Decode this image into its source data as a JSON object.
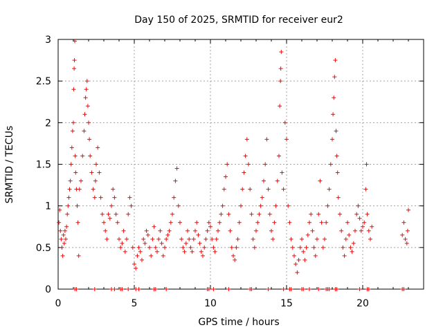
{
  "chart_data": {
    "type": "scatter",
    "title": "Day 150 of 2025, SRMTID for receiver eur2",
    "xlabel": "GPS time / hours",
    "ylabel": "SRMTID / TECUs",
    "xlim": [
      0,
      24
    ],
    "ylim": [
      0,
      3
    ],
    "grid": true,
    "x_ticks": [
      "0",
      "5",
      "10",
      "15",
      "20"
    ],
    "y_ticks": [
      "0",
      "0.5",
      "1",
      "1.5",
      "2",
      "2.5",
      "3"
    ],
    "marker": "plus",
    "color": "#ff0000",
    "series": [
      {
        "name": "SRMTID",
        "points": [
          [
            0.05,
            0.8
          ],
          [
            0.1,
            0.95
          ],
          [
            0.15,
            0.7
          ],
          [
            0.2,
            0.6
          ],
          [
            0.25,
            0.5
          ],
          [
            0.3,
            0.4
          ],
          [
            0.35,
            0.65
          ],
          [
            0.4,
            0.55
          ],
          [
            0.45,
            0.7
          ],
          [
            0.5,
            0.6
          ],
          [
            0.55,
            0.75
          ],
          [
            0.6,
            0.9
          ],
          [
            0.65,
            1.0
          ],
          [
            0.7,
            1.1
          ],
          [
            0.75,
            1.2
          ],
          [
            0.8,
            1.3
          ],
          [
            0.85,
            1.5
          ],
          [
            0.9,
            1.7
          ],
          [
            0.95,
            1.9
          ],
          [
            1.0,
            2.0
          ],
          [
            1.02,
            2.4
          ],
          [
            1.05,
            2.65
          ],
          [
            1.07,
            2.75
          ],
          [
            1.09,
            2.98
          ],
          [
            1.12,
            1.6
          ],
          [
            1.15,
            1.4
          ],
          [
            1.2,
            1.2
          ],
          [
            1.25,
            1.0
          ],
          [
            1.3,
            0.8
          ],
          [
            1.35,
            0.4
          ],
          [
            1.4,
            1.2
          ],
          [
            1.5,
            1.3
          ],
          [
            1.6,
            1.6
          ],
          [
            1.7,
            1.9
          ],
          [
            1.75,
            2.1
          ],
          [
            1.8,
            2.3
          ],
          [
            1.85,
            2.4
          ],
          [
            1.9,
            2.5
          ],
          [
            1.95,
            2.2
          ],
          [
            2.0,
            2.0
          ],
          [
            2.05,
            1.8
          ],
          [
            2.1,
            1.6
          ],
          [
            2.2,
            1.4
          ],
          [
            2.3,
            1.2
          ],
          [
            2.4,
            1.1
          ],
          [
            2.45,
            1.3
          ],
          [
            2.5,
            1.5
          ],
          [
            2.6,
            1.7
          ],
          [
            2.7,
            1.4
          ],
          [
            2.8,
            1.1
          ],
          [
            2.9,
            0.9
          ],
          [
            3.0,
            0.8
          ],
          [
            3.1,
            0.7
          ],
          [
            3.2,
            0.6
          ],
          [
            3.3,
            0.9
          ],
          [
            3.4,
            0.85
          ],
          [
            3.5,
            1.0
          ],
          [
            3.6,
            1.2
          ],
          [
            3.7,
            1.1
          ],
          [
            3.8,
            0.9
          ],
          [
            3.9,
            0.8
          ],
          [
            4.0,
            0.6
          ],
          [
            4.1,
            0.5
          ],
          [
            4.2,
            0.55
          ],
          [
            4.3,
            0.7
          ],
          [
            4.4,
            0.45
          ],
          [
            4.5,
            0.6
          ],
          [
            4.6,
            0.9
          ],
          [
            4.7,
            1.1
          ],
          [
            4.8,
            1.0
          ],
          [
            4.9,
            0.5
          ],
          [
            5.0,
            0.3
          ],
          [
            5.1,
            0.25
          ],
          [
            5.2,
            0.4
          ],
          [
            5.3,
            0.5
          ],
          [
            5.4,
            0.45
          ],
          [
            5.5,
            0.35
          ],
          [
            5.6,
            0.6
          ],
          [
            5.7,
            0.55
          ],
          [
            5.8,
            0.7
          ],
          [
            5.9,
            0.65
          ],
          [
            6.0,
            0.5
          ],
          [
            6.1,
            0.4
          ],
          [
            6.2,
            0.6
          ],
          [
            6.3,
            0.75
          ],
          [
            6.4,
            0.5
          ],
          [
            6.5,
            0.45
          ],
          [
            6.6,
            0.6
          ],
          [
            6.7,
            0.7
          ],
          [
            6.8,
            0.55
          ],
          [
            6.9,
            0.4
          ],
          [
            7.0,
            0.5
          ],
          [
            7.1,
            0.6
          ],
          [
            7.2,
            0.65
          ],
          [
            7.3,
            0.7
          ],
          [
            7.4,
            0.8
          ],
          [
            7.5,
            0.9
          ],
          [
            7.6,
            1.1
          ],
          [
            7.7,
            1.3
          ],
          [
            7.8,
            1.45
          ],
          [
            7.9,
            1.0
          ],
          [
            8.0,
            0.8
          ],
          [
            8.1,
            0.6
          ],
          [
            8.2,
            0.5
          ],
          [
            8.3,
            0.45
          ],
          [
            8.4,
            0.55
          ],
          [
            8.5,
            0.7
          ],
          [
            8.6,
            0.6
          ],
          [
            8.7,
            0.5
          ],
          [
            8.8,
            0.45
          ],
          [
            8.9,
            0.6
          ],
          [
            9.0,
            0.7
          ],
          [
            9.1,
            0.8
          ],
          [
            9.2,
            0.65
          ],
          [
            9.3,
            0.55
          ],
          [
            9.4,
            0.45
          ],
          [
            9.5,
            0.4
          ],
          [
            9.6,
            0.5
          ],
          [
            9.7,
            0.6
          ],
          [
            9.8,
            0.7
          ],
          [
            9.9,
            0.8
          ],
          [
            10.0,
            0.75
          ],
          [
            10.1,
            0.6
          ],
          [
            10.2,
            0.5
          ],
          [
            10.3,
            0.45
          ],
          [
            10.4,
            0.6
          ],
          [
            10.5,
            0.7
          ],
          [
            10.6,
            0.8
          ],
          [
            10.7,
            0.9
          ],
          [
            10.8,
            1.0
          ],
          [
            10.9,
            1.2
          ],
          [
            11.0,
            1.35
          ],
          [
            11.1,
            1.5
          ],
          [
            11.2,
            0.9
          ],
          [
            11.3,
            0.7
          ],
          [
            11.4,
            0.5
          ],
          [
            11.5,
            0.4
          ],
          [
            11.6,
            0.35
          ],
          [
            11.7,
            0.5
          ],
          [
            11.8,
            0.6
          ],
          [
            11.9,
            0.8
          ],
          [
            12.0,
            1.0
          ],
          [
            12.1,
            1.2
          ],
          [
            12.2,
            1.4
          ],
          [
            12.3,
            1.6
          ],
          [
            12.4,
            1.8
          ],
          [
            12.5,
            1.5
          ],
          [
            12.6,
            1.2
          ],
          [
            12.7,
            0.9
          ],
          [
            12.8,
            0.6
          ],
          [
            12.9,
            0.5
          ],
          [
            13.0,
            0.7
          ],
          [
            13.1,
            0.8
          ],
          [
            13.2,
            0.9
          ],
          [
            13.3,
            1.0
          ],
          [
            13.4,
            1.1
          ],
          [
            13.5,
            1.3
          ],
          [
            13.6,
            1.5
          ],
          [
            13.7,
            1.8
          ],
          [
            13.8,
            1.2
          ],
          [
            13.9,
            0.9
          ],
          [
            14.0,
            0.7
          ],
          [
            14.1,
            0.6
          ],
          [
            14.2,
            0.8
          ],
          [
            14.3,
            1.0
          ],
          [
            14.4,
            1.3
          ],
          [
            14.5,
            1.6
          ],
          [
            14.55,
            2.2
          ],
          [
            14.6,
            2.5
          ],
          [
            14.62,
            2.65
          ],
          [
            14.65,
            2.85
          ],
          [
            14.7,
            1.4
          ],
          [
            14.8,
            1.2
          ],
          [
            14.9,
            2.0
          ],
          [
            15.0,
            1.8
          ],
          [
            15.1,
            1.0
          ],
          [
            15.2,
            0.8
          ],
          [
            15.3,
            0.6
          ],
          [
            15.4,
            0.5
          ],
          [
            15.5,
            0.4
          ],
          [
            15.6,
            0.3
          ],
          [
            15.7,
            0.2
          ],
          [
            15.8,
            0.35
          ],
          [
            15.9,
            0.5
          ],
          [
            16.0,
            0.6
          ],
          [
            16.1,
            0.45
          ],
          [
            16.2,
            0.35
          ],
          [
            16.3,
            0.5
          ],
          [
            16.4,
            0.65
          ],
          [
            16.5,
            0.8
          ],
          [
            16.6,
            0.9
          ],
          [
            16.7,
            0.7
          ],
          [
            16.8,
            0.5
          ],
          [
            16.9,
            0.4
          ],
          [
            17.0,
            0.6
          ],
          [
            17.1,
            0.9
          ],
          [
            17.2,
            1.3
          ],
          [
            17.3,
            0.8
          ],
          [
            17.4,
            0.5
          ],
          [
            17.5,
            0.6
          ],
          [
            17.6,
            0.8
          ],
          [
            17.7,
            1.0
          ],
          [
            17.8,
            1.2
          ],
          [
            17.9,
            1.5
          ],
          [
            18.0,
            1.8
          ],
          [
            18.05,
            2.1
          ],
          [
            18.1,
            2.3
          ],
          [
            18.15,
            2.55
          ],
          [
            18.2,
            2.75
          ],
          [
            18.25,
            1.9
          ],
          [
            18.3,
            1.6
          ],
          [
            18.35,
            1.4
          ],
          [
            18.4,
            1.1
          ],
          [
            18.5,
            0.9
          ],
          [
            18.6,
            0.7
          ],
          [
            18.7,
            0.5
          ],
          [
            18.8,
            0.4
          ],
          [
            18.9,
            0.6
          ],
          [
            19.0,
            0.8
          ],
          [
            19.1,
            0.65
          ],
          [
            19.2,
            0.5
          ],
          [
            19.3,
            0.45
          ],
          [
            19.4,
            0.55
          ],
          [
            19.5,
            0.7
          ],
          [
            19.6,
            0.9
          ],
          [
            19.7,
            1.0
          ],
          [
            19.8,
            0.85
          ],
          [
            19.9,
            0.7
          ],
          [
            20.0,
            0.75
          ],
          [
            20.1,
            0.8
          ],
          [
            20.2,
            1.2
          ],
          [
            20.25,
            1.5
          ],
          [
            20.3,
            0.9
          ],
          [
            20.4,
            0.7
          ],
          [
            20.5,
            0.6
          ],
          [
            20.6,
            0.75
          ],
          [
            22.6,
            0.65
          ],
          [
            22.7,
            0.8
          ],
          [
            22.8,
            0.6
          ],
          [
            22.9,
            0.55
          ],
          [
            22.95,
            0.7
          ],
          [
            23.0,
            0.95
          ]
        ]
      }
    ],
    "zero_points_x": [
      1.1,
      1.2,
      2.4,
      3.5,
      3.7,
      4.1,
      4.2,
      4.6,
      5.1,
      5.3,
      6.3,
      6.4,
      7.1,
      9.8,
      9.9,
      10.2,
      11.2,
      12.6,
      12.7,
      13.8,
      14.8,
      15.2,
      15.3,
      16.0,
      16.1,
      16.5,
      17.1,
      17.6,
      17.7,
      17.8,
      18.2,
      18.3,
      19.8,
      20.3,
      20.4,
      22.6,
      22.7
    ]
  }
}
